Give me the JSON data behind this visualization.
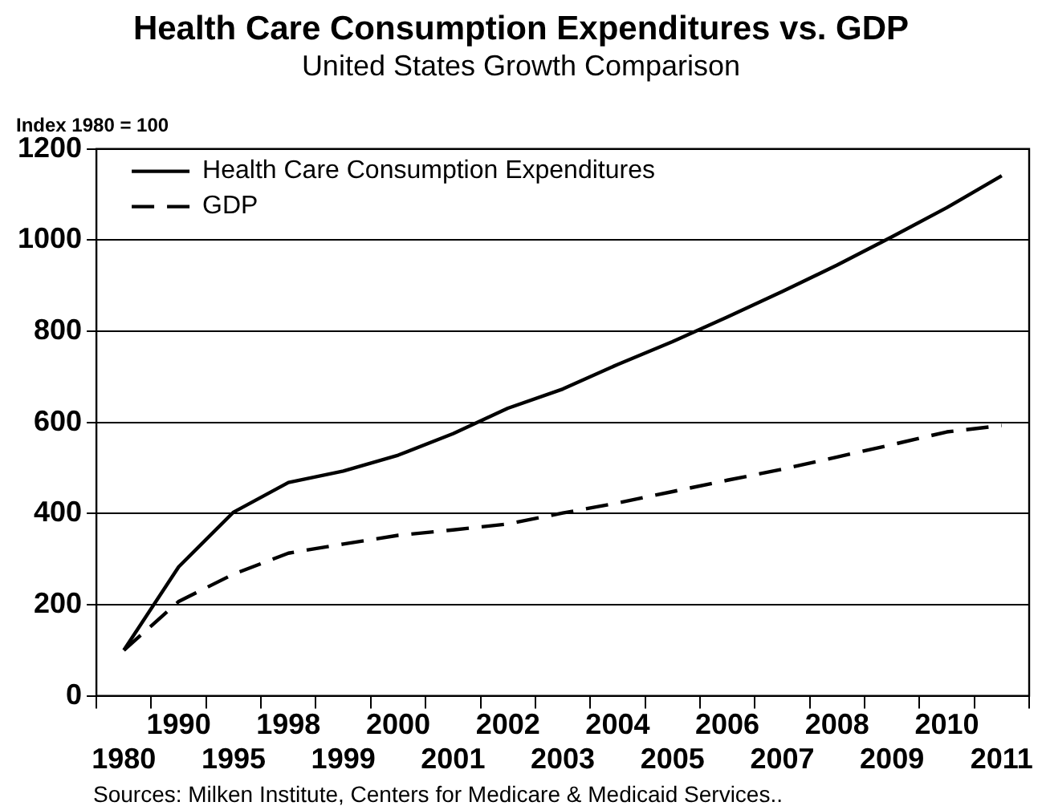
{
  "chart_data": {
    "type": "line",
    "title": "Health Care Consumption Expenditures vs. GDP",
    "subtitle": "United States Growth Comparison",
    "ylabel": "Index 1980 = 100",
    "categories": [
      "1980",
      "1990",
      "1995",
      "1998",
      "1999",
      "2000",
      "2001",
      "2002",
      "2003",
      "2004",
      "2005",
      "2006",
      "2007",
      "2008",
      "2009",
      "2010",
      "2011"
    ],
    "series": [
      {
        "name": "Health Care Consumption Expenditures",
        "color": "#000000",
        "line_style": "solid",
        "values": [
          100,
          283,
          403,
          468,
          493,
          528,
          575,
          631,
          673,
          727,
          777,
          831,
          887,
          945,
          1007,
          1071,
          1141
        ]
      },
      {
        "name": "GDP",
        "color": "#000000",
        "line_style": "dashed",
        "values": [
          100,
          207,
          267,
          313,
          333,
          352,
          364,
          377,
          401,
          423,
          448,
          473,
          497,
          524,
          551,
          579,
          593
        ]
      }
    ],
    "ylim": [
      0,
      1200
    ],
    "yticks": [
      0,
      200,
      400,
      600,
      800,
      1000,
      1200
    ],
    "grid": "y",
    "legend": "top left",
    "marker": "none",
    "annotations": [
      "Sources: Milken Institute, Centers for Medicare & Medicaid Services.."
    ]
  }
}
